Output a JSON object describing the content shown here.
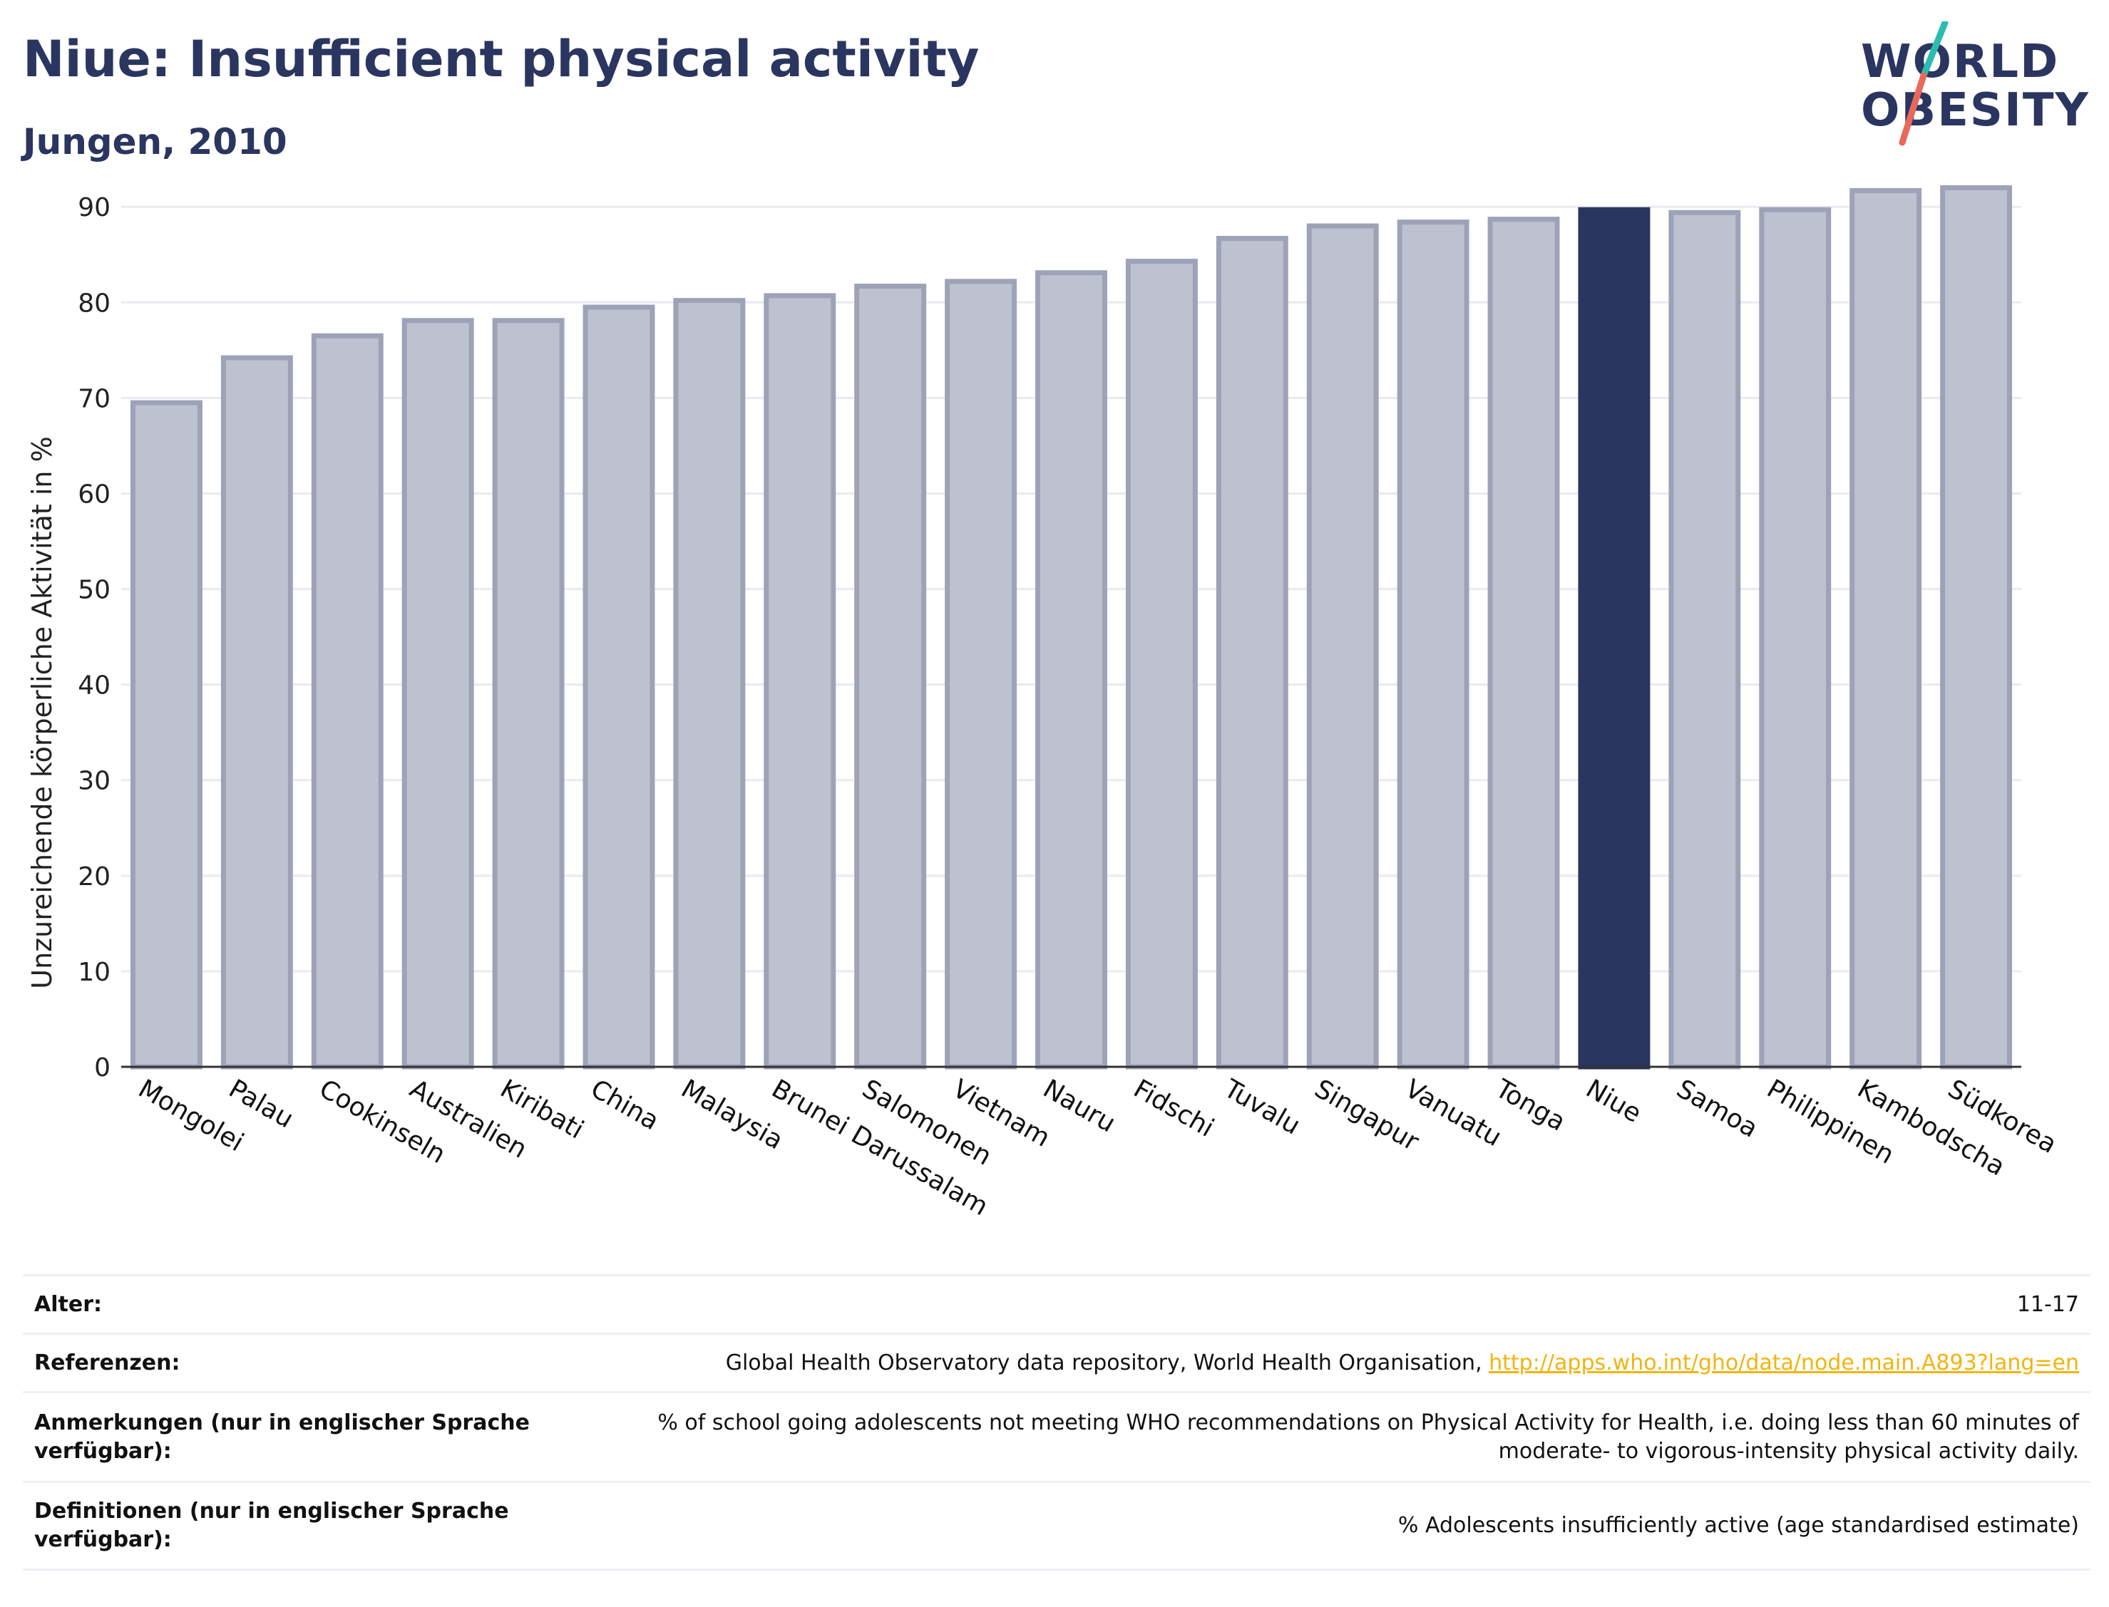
{
  "header": {
    "title": "Niue: Insufficient physical activity",
    "subtitle": "Jungen, 2010"
  },
  "logo": {
    "line1": "WORLD",
    "line2": "OBESITY",
    "accent_teal": "#2bbcb0",
    "accent_red": "#e8685a"
  },
  "colors": {
    "bar_default_fill": "#bec1cf",
    "bar_default_stroke": "#9da2b8",
    "bar_highlight": "#2a3560",
    "text": "#2a3560",
    "grid": "#eaeaf0"
  },
  "chart_data": {
    "type": "bar",
    "title": "Niue: Insufficient physical activity",
    "subtitle": "Jungen, 2010",
    "xlabel": "",
    "ylabel": "Unzureichende körperliche Aktivität in %",
    "ylim": [
      0,
      93
    ],
    "yticks": [
      0,
      10,
      20,
      30,
      40,
      50,
      60,
      70,
      80,
      90
    ],
    "grid": true,
    "highlight": "Niue",
    "categories": [
      "Mongolei",
      "Palau",
      "Cookinseln",
      "Australien",
      "Kiribati",
      "China",
      "Malaysia",
      "Brunei Darussalam",
      "Salomonen",
      "Vietnam",
      "Nauru",
      "Fidschi",
      "Tuvalu",
      "Singapur",
      "Vanuatu",
      "Tonga",
      "Niue",
      "Samoa",
      "Philippinen",
      "Kambodscha",
      "Südkorea"
    ],
    "values": [
      69.5,
      74.2,
      76.5,
      78.1,
      78.1,
      79.5,
      80.2,
      80.7,
      81.7,
      82.2,
      83.1,
      84.3,
      86.7,
      88.0,
      88.4,
      88.7,
      89.7,
      89.4,
      89.7,
      91.7,
      92.0
    ]
  },
  "info": {
    "rows": [
      {
        "label": "Alter:",
        "value": "11-17"
      },
      {
        "label": "Referenzen:",
        "value": "Global Health Observatory data repository, World Health Organisation, ",
        "link": "http://apps.who.int/gho/data/node.main.A893?lang=en"
      },
      {
        "label": "Anmerkungen (nur in englischer Sprache verfügbar):",
        "value": "% of school going adolescents not meeting WHO recommendations on Physical Activity for Health, i.e. doing less than 60 minutes of moderate- to vigorous-intensity physical activity daily."
      },
      {
        "label": "Definitionen (nur in englischer Sprache verfügbar):",
        "value": "% Adolescents insufficiently active (age standardised estimate)"
      }
    ]
  }
}
